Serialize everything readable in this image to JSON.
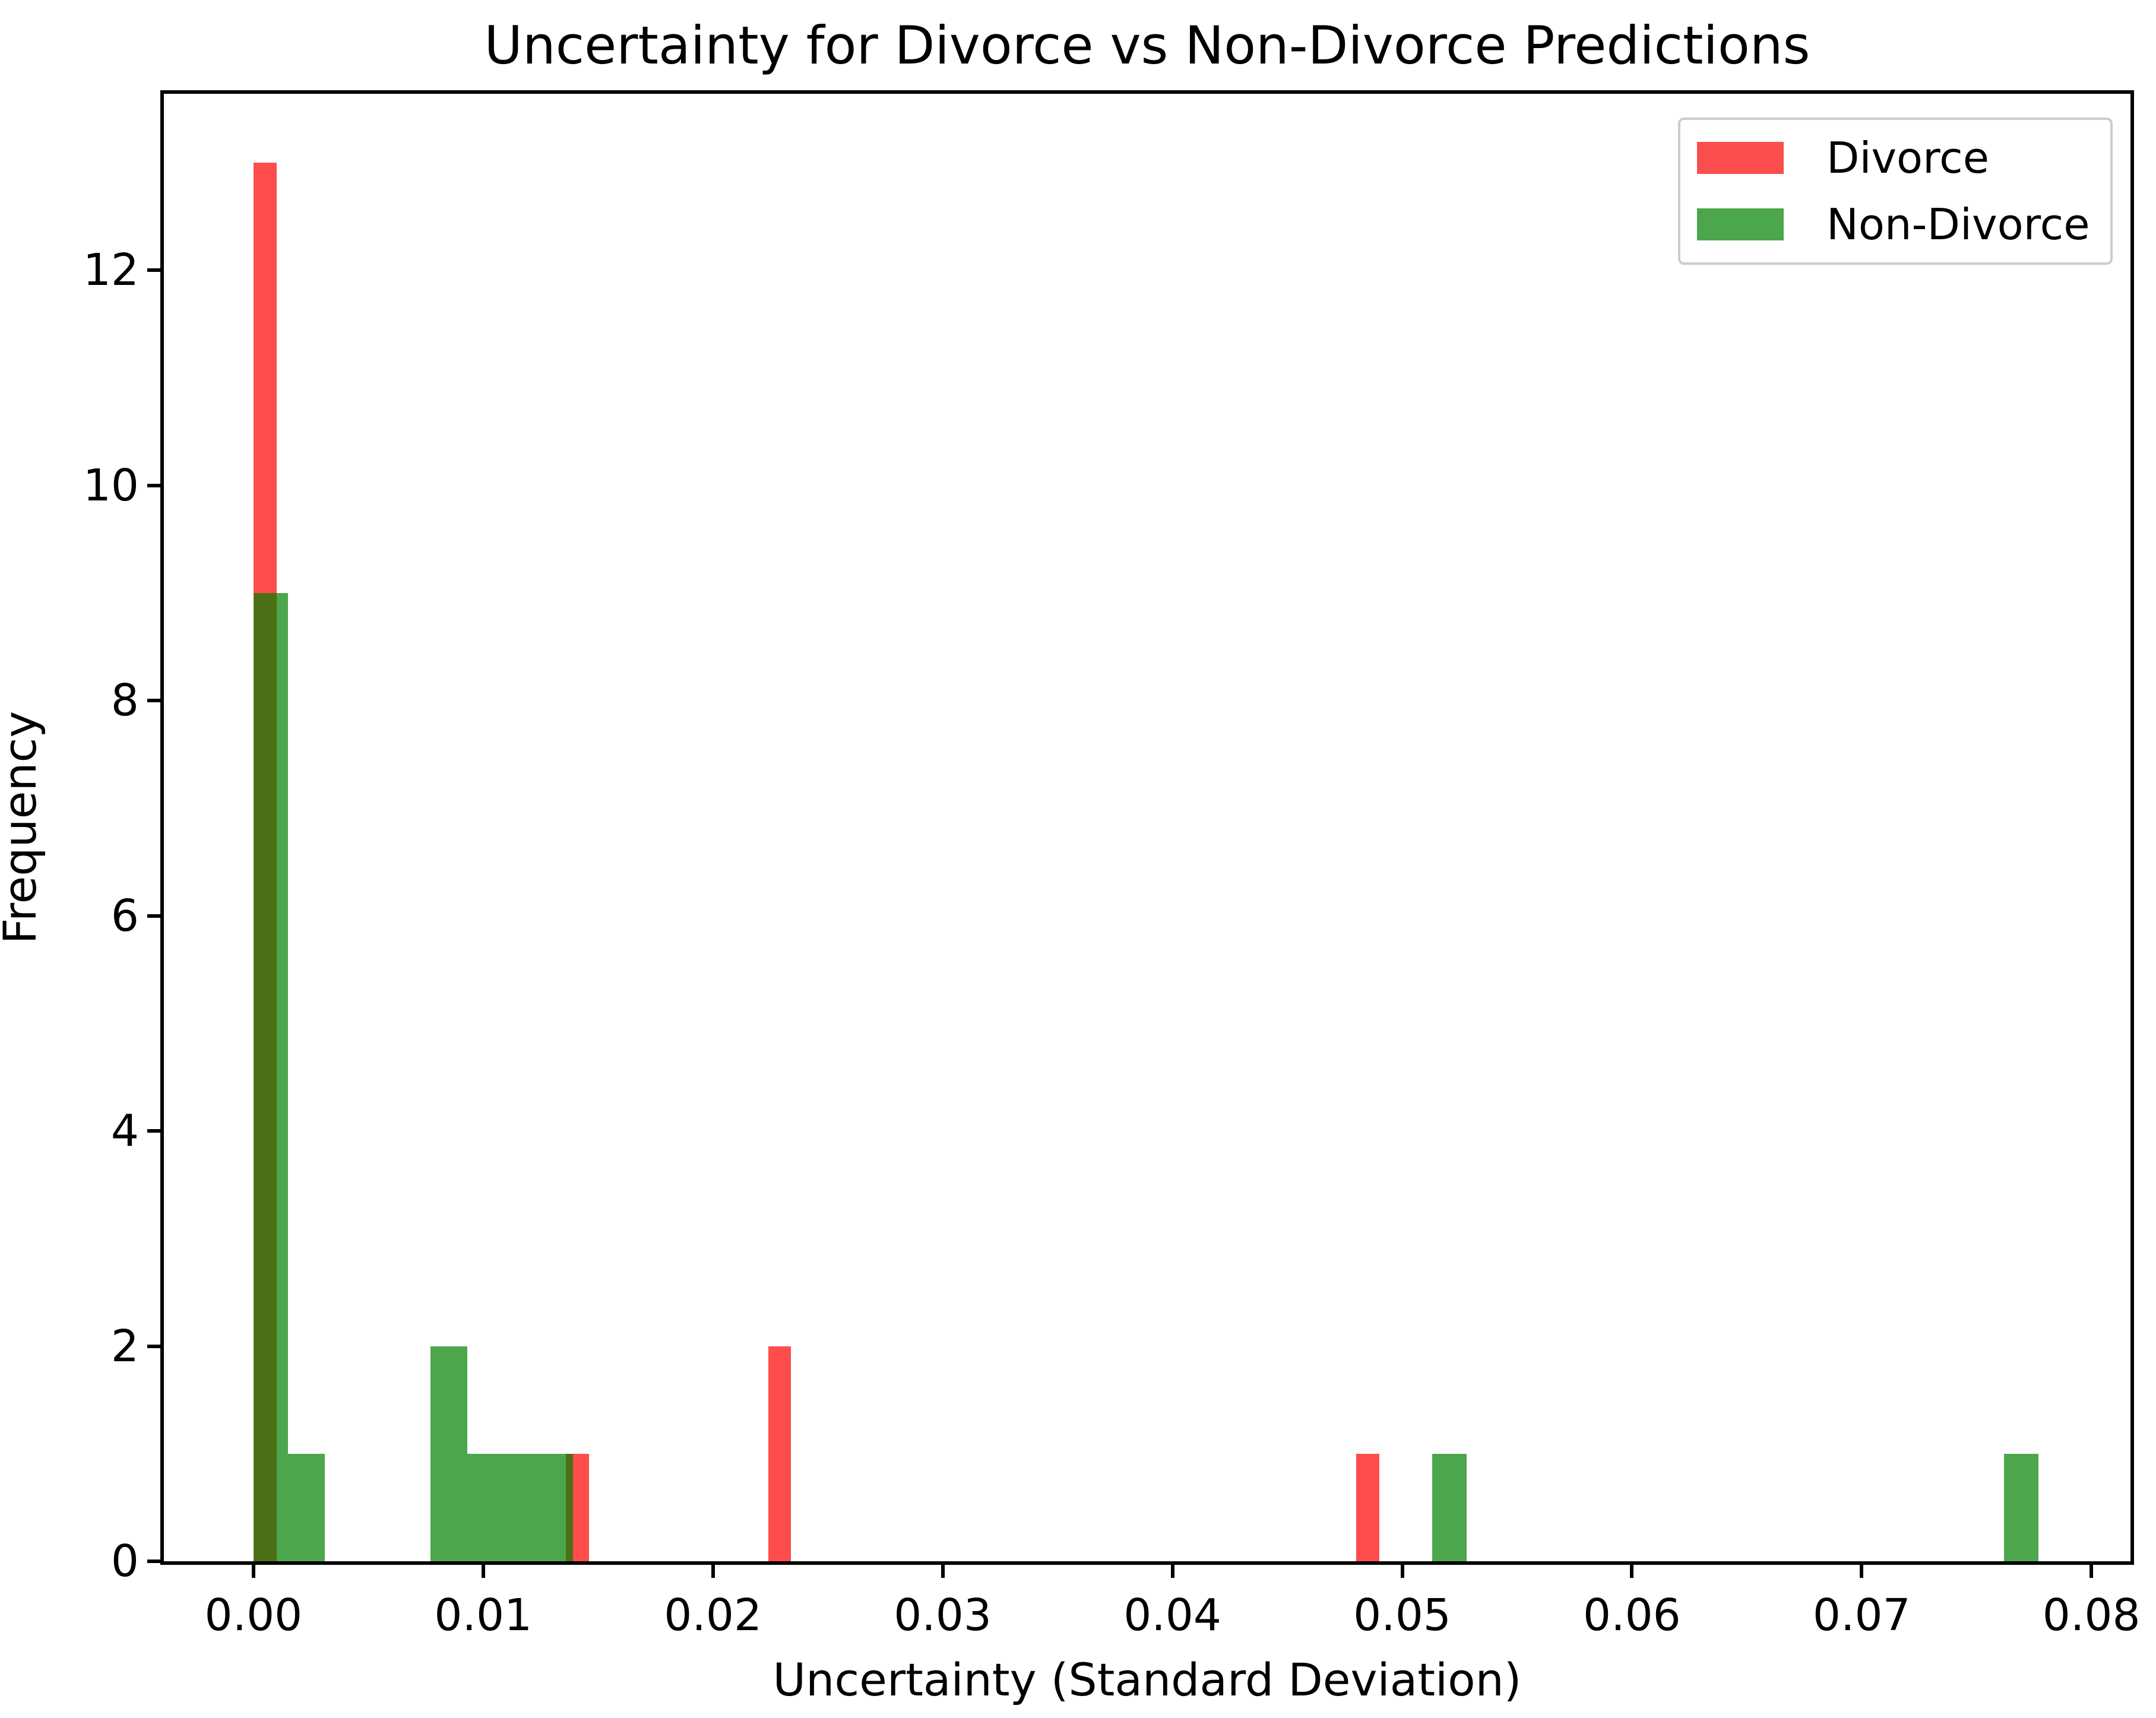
{
  "figure": {
    "title": "Uncertainty for Divorce vs Non-Divorce Predictions",
    "xlabel": "Uncertainty (Standard Deviation)",
    "ylabel": "Frequency"
  },
  "legend": {
    "position": "upper-right",
    "items": [
      {
        "label": "Divorce",
        "color": "#fb4d4d"
      },
      {
        "label": "Non-Divorce",
        "color": "#4ca64c"
      }
    ]
  },
  "chart_data": {
    "type": "bar",
    "subtype": "overlaid-histograms",
    "title": "Uncertainty for Divorce vs Non-Divorce Predictions",
    "xlabel": "Uncertainty (Standard Deviation)",
    "ylabel": "Frequency",
    "xlim": [
      -0.0039,
      0.0817
    ],
    "ylim": [
      0,
      13.64
    ],
    "grid": false,
    "legend_position": "upper right",
    "x_ticks": [
      {
        "value": 0.0,
        "label": "0.00"
      },
      {
        "value": 0.01,
        "label": "0.01"
      },
      {
        "value": 0.02,
        "label": "0.02"
      },
      {
        "value": 0.03,
        "label": "0.03"
      },
      {
        "value": 0.04,
        "label": "0.04"
      },
      {
        "value": 0.05,
        "label": "0.05"
      },
      {
        "value": 0.06,
        "label": "0.06"
      },
      {
        "value": 0.07,
        "label": "0.07"
      },
      {
        "value": 0.08,
        "label": "0.08"
      }
    ],
    "y_ticks": [
      {
        "value": 0,
        "label": "0"
      },
      {
        "value": 2,
        "label": "2"
      },
      {
        "value": 4,
        "label": "4"
      },
      {
        "value": 6,
        "label": "6"
      },
      {
        "value": 8,
        "label": "8"
      },
      {
        "value": 10,
        "label": "10"
      },
      {
        "value": 12,
        "label": "12"
      }
    ],
    "series": [
      {
        "name": "Divorce",
        "fill": "rgba(255, 0, 0, 0.7)",
        "legend_color": "#fb4d4d",
        "bins": [
          {
            "x0": 0.0,
            "x1": 0.001,
            "count": 13
          },
          {
            "x0": 0.0136,
            "x1": 0.0146,
            "count": 1
          },
          {
            "x0": 0.0224,
            "x1": 0.0234,
            "count": 2
          },
          {
            "x0": 0.048,
            "x1": 0.049,
            "count": 1
          }
        ]
      },
      {
        "name": "Non-Divorce",
        "fill": "rgba(0, 128, 0, 0.7)",
        "legend_color": "#4ca64c",
        "bins": [
          {
            "x0": 0.0,
            "x1": 0.0015,
            "count": 9
          },
          {
            "x0": 0.0015,
            "x1": 0.0031,
            "count": 1
          },
          {
            "x0": 0.0077,
            "x1": 0.0093,
            "count": 2
          },
          {
            "x0": 0.0093,
            "x1": 0.0108,
            "count": 1
          },
          {
            "x0": 0.0108,
            "x1": 0.0124,
            "count": 1
          },
          {
            "x0": 0.0124,
            "x1": 0.0139,
            "count": 1
          },
          {
            "x0": 0.0513,
            "x1": 0.0528,
            "count": 1
          },
          {
            "x0": 0.0762,
            "x1": 0.0777,
            "count": 1
          }
        ]
      }
    ]
  }
}
